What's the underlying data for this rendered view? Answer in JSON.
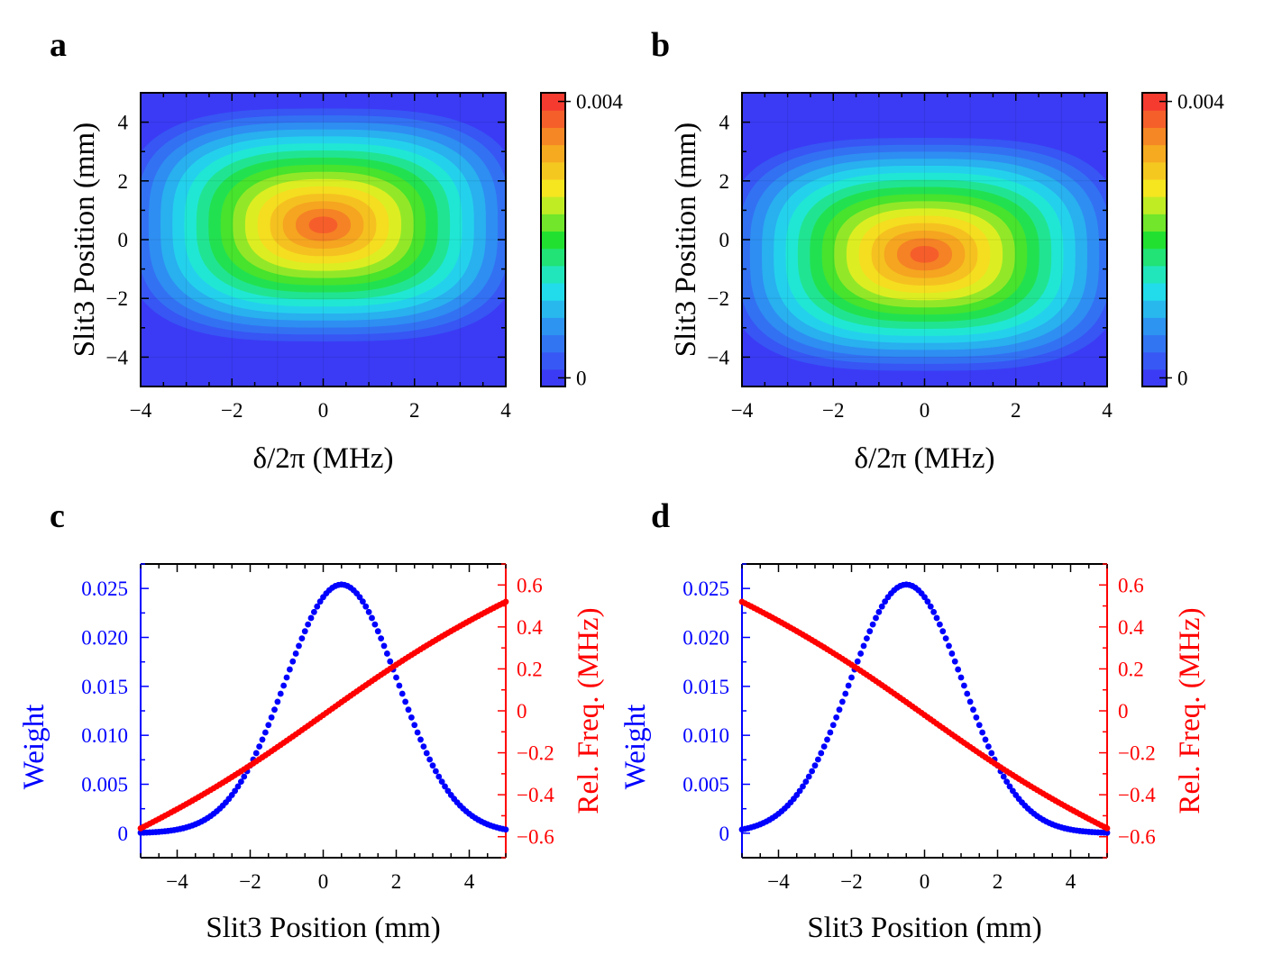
{
  "chart_data": [
    {
      "panel": "a",
      "type": "heatmap",
      "xlabel": "δ/2π (MHz)",
      "ylabel": "Slit3 Position (mm)",
      "xlim": [
        -4,
        4
      ],
      "ylim": [
        -5,
        5
      ],
      "xticks": [
        -4,
        -2,
        0,
        2,
        4
      ],
      "yticks": [
        -4,
        -2,
        0,
        2,
        4
      ],
      "peak_center": [
        0,
        0.5
      ],
      "colorbar": {
        "min": 0,
        "max": 0.004,
        "tick_values": [
          0,
          0.004
        ],
        "tick_labels": [
          "0",
          "0.004"
        ],
        "colors": [
          "#3b3bf5",
          "#2f88f2",
          "#20e8ea",
          "#22e030",
          "#f5f020",
          "#f5a020",
          "#f53a30"
        ]
      }
    },
    {
      "panel": "b",
      "type": "heatmap",
      "xlabel": "δ/2π (MHz)",
      "ylabel": "Slit3 Position (mm)",
      "xlim": [
        -4,
        4
      ],
      "ylim": [
        -5,
        5
      ],
      "xticks": [
        -4,
        -2,
        0,
        2,
        4
      ],
      "yticks": [
        -4,
        -2,
        0,
        2,
        4
      ],
      "peak_center": [
        0,
        -0.5
      ],
      "colorbar": {
        "min": 0,
        "max": 0.004,
        "tick_values": [
          0,
          0.004
        ],
        "tick_labels": [
          "0",
          "0.004"
        ],
        "colors": [
          "#3b3bf5",
          "#2f88f2",
          "#20e8ea",
          "#22e030",
          "#f5f020",
          "#f5a020",
          "#f53a30"
        ]
      }
    },
    {
      "panel": "c",
      "type": "scatter",
      "xlabel": "Slit3 Position (mm)",
      "xlim": [
        -5,
        5
      ],
      "xticks": [
        -4,
        -2,
        0,
        2,
        4
      ],
      "y_left": {
        "label": "Weight",
        "lim": [
          -0.0025,
          0.0275
        ],
        "ticks": [
          0,
          0.005,
          0.01,
          0.015,
          0.02,
          0.025
        ],
        "tick_labels": [
          "0",
          "0.005",
          "0.010",
          "0.015",
          "0.020",
          "0.025"
        ],
        "color": "#0000ff"
      },
      "y_right": {
        "label": "Rel. Freq. (MHz)",
        "lim": [
          -0.7,
          0.7
        ],
        "ticks": [
          -0.6,
          -0.4,
          -0.2,
          0,
          0.2,
          0.4,
          0.6
        ],
        "tick_labels": [
          "-0.6",
          "-0.4",
          "-0.2",
          "0",
          "0.2",
          "0.4",
          "0.6"
        ],
        "color": "#ff0000"
      },
      "series": [
        {
          "axis": "left",
          "color": "#0000ff",
          "shape": "gaussian",
          "center": 0.5,
          "sigma": 1.55,
          "peak": 0.0254,
          "x_range": [
            -5,
            5
          ],
          "n_points": 121
        },
        {
          "axis": "right",
          "color": "#ff0000",
          "shape": "line",
          "y_at_xmin": -0.56,
          "y_at_xmax": 0.52,
          "x_range": [
            -5,
            5
          ],
          "n_points": 121
        }
      ]
    },
    {
      "panel": "d",
      "type": "scatter",
      "xlabel": "Slit3 Position (mm)",
      "xlim": [
        -5,
        5
      ],
      "xticks": [
        -4,
        -2,
        0,
        2,
        4
      ],
      "y_left": {
        "label": "Weight",
        "lim": [
          -0.0025,
          0.0275
        ],
        "ticks": [
          0,
          0.005,
          0.01,
          0.015,
          0.02,
          0.025
        ],
        "tick_labels": [
          "0",
          "0.005",
          "0.010",
          "0.015",
          "0.020",
          "0.025"
        ],
        "color": "#0000ff"
      },
      "y_right": {
        "label": "Rel. Freq. (MHz)",
        "lim": [
          -0.7,
          0.7
        ],
        "ticks": [
          -0.6,
          -0.4,
          -0.2,
          0,
          0.2,
          0.4,
          0.6
        ],
        "tick_labels": [
          "-0.6",
          "-0.4",
          "-0.2",
          "0",
          "0.2",
          "0.4",
          "0.6"
        ],
        "color": "#ff0000"
      },
      "series": [
        {
          "axis": "left",
          "color": "#0000ff",
          "shape": "gaussian",
          "center": -0.5,
          "sigma": 1.55,
          "peak": 0.0254,
          "x_range": [
            -5,
            5
          ],
          "n_points": 121
        },
        {
          "axis": "right",
          "color": "#ff0000",
          "shape": "line",
          "y_at_xmin": 0.52,
          "y_at_xmax": -0.56,
          "x_range": [
            -5,
            5
          ],
          "n_points": 121
        }
      ]
    }
  ]
}
